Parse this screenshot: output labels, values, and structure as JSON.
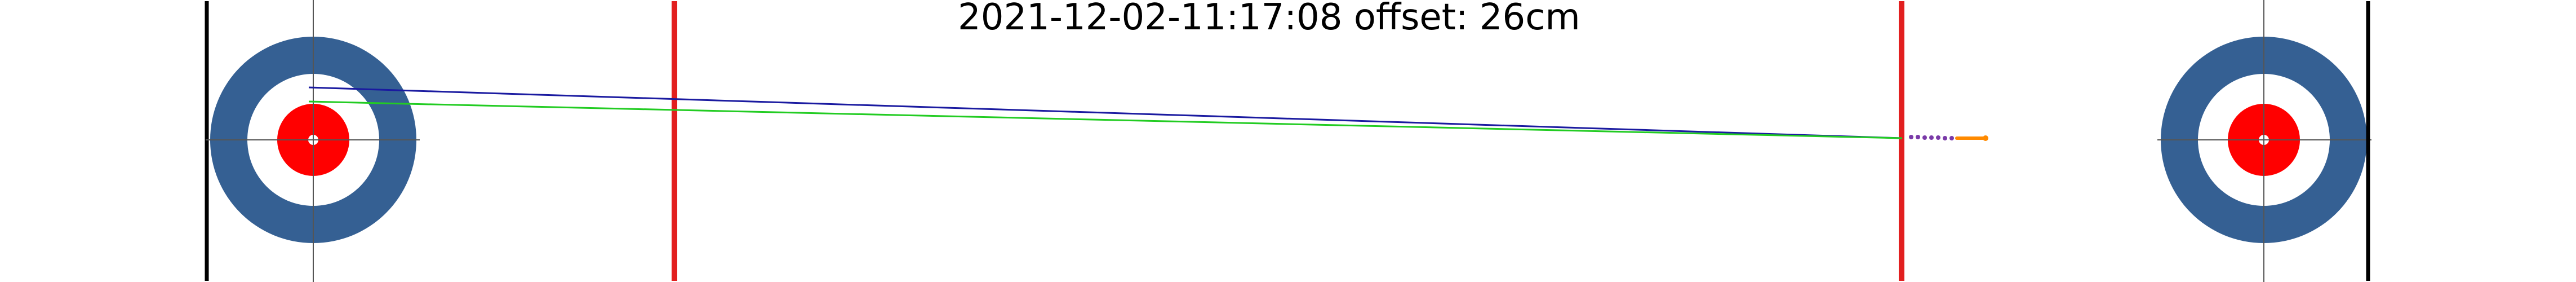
{
  "header": {
    "title": "2021-12-02-11:17:08 offset: 26cm"
  },
  "colors": {
    "background": "#ffffff",
    "house_outer_ring": "#356093",
    "house_middle_ring": "#ffffff",
    "button": "#ff0000",
    "hog_line": "#e21f1f",
    "back_line": "#000000",
    "center_line": "#555555",
    "trajectory_measured": "#1a1aa0",
    "trajectory_fitted": "#22cc22",
    "stone_start": "#ff8a00",
    "stone_track": "#7a3aa8"
  },
  "elements": {
    "left_house": "house-target-left",
    "right_house": "house-target-right",
    "left_hog_line": "hog-line-left",
    "right_hog_line": "hog-line-right",
    "left_back_line": "back-line-left",
    "right_back_line": "back-line-right",
    "measured_path": "trajectory-measured",
    "fitted_path": "trajectory-fitted",
    "release_point": "stone-release-marker"
  }
}
